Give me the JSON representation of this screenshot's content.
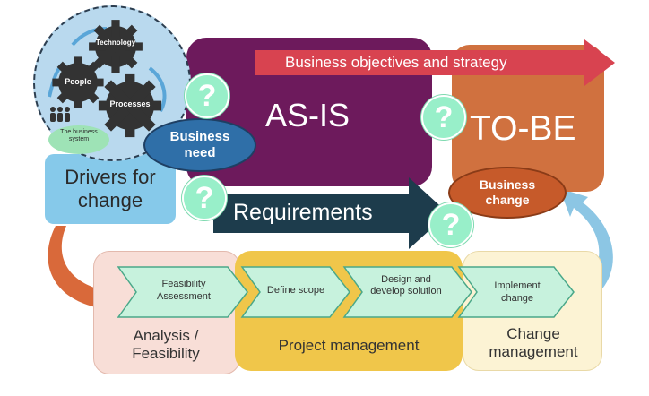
{
  "system_circle": {
    "gears": {
      "technology": "Technology",
      "people": "People",
      "processes": "Processes"
    },
    "business_system": "The business system"
  },
  "as_is": {
    "label": "AS-IS"
  },
  "to_be": {
    "label": "TO-BE"
  },
  "objectives_arrow": {
    "label": "Business objectives and strategy"
  },
  "business_need": {
    "label": "Business need"
  },
  "business_change": {
    "label": "Business change"
  },
  "drivers": {
    "label": "Drivers for change"
  },
  "requirements": {
    "label": "Requirements"
  },
  "question_marks": [
    "?",
    "?",
    "?",
    "?"
  ],
  "process_steps": [
    {
      "label": "Feasibility Assessment"
    },
    {
      "label": "Define scope"
    },
    {
      "label": "Design and develop solution"
    },
    {
      "label": "Implement change"
    }
  ],
  "phases": [
    {
      "label": "Analysis / Feasibility"
    },
    {
      "label": "Project management"
    },
    {
      "label": "Change management"
    }
  ],
  "colors": {
    "as_is": "#6d1a5c",
    "to_be": "#d0713f",
    "objectives_arrow": "#d84350",
    "requirements": "#1d3c4c",
    "drivers": "#86c9ea",
    "business_need": "#2f6fa8",
    "business_change": "#c65a2a",
    "question": "#98efc9",
    "step_fill": "#c7f2dd",
    "analysis": "#f8ded7",
    "project": "#f0c64a",
    "change_mgmt": "#fcf3d4",
    "circle": "#b9d9ee",
    "gear": "#333333"
  }
}
